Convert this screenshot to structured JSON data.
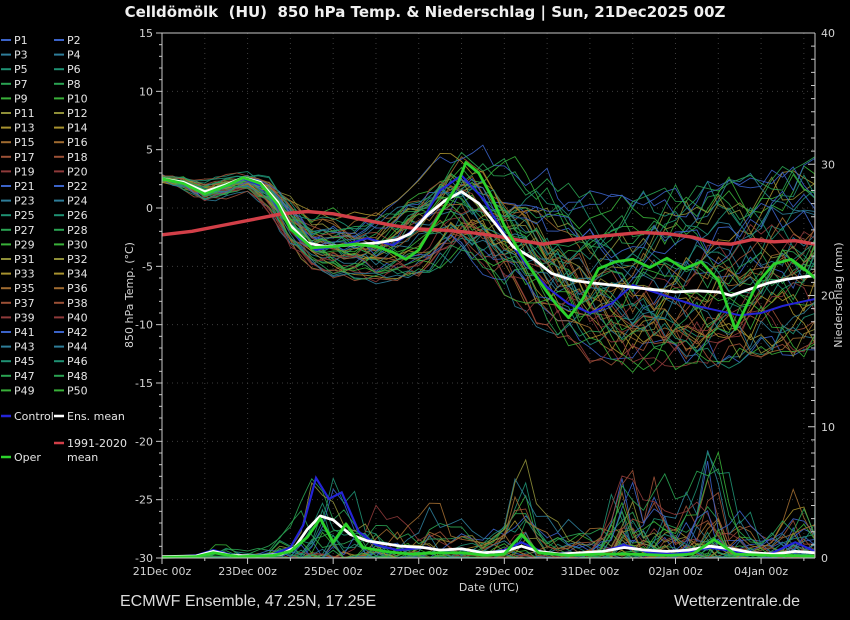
{
  "title": "Celldömölk  (HU)  850 hPa Temp. & Niederschlag | Sun, 21Dec2025 00Z",
  "footer": {
    "left": "ECMWF Ensemble, 47.25N, 17.25E",
    "right": "Wetterzentrale.de"
  },
  "colors": {
    "background": "#000000",
    "grid": "#3d3d3d",
    "axis": "#c8c8c8",
    "member_palette10": [
      "#3b63c8",
      "#2e7d99",
      "#1f9173",
      "#2aa352",
      "#39b039",
      "#8f8f38",
      "#a8922f",
      "#a06b30",
      "#9c5036",
      "#8f3a3a"
    ],
    "control": "#2424d8",
    "ens_mean": "#ffffff",
    "climate_mean": "#d23f48",
    "oper": "#2bd22b"
  },
  "legend": {
    "members": [
      "P1",
      "P2",
      "P3",
      "P4",
      "P5",
      "P6",
      "P7",
      "P8",
      "P9",
      "P10",
      "P11",
      "P12",
      "P13",
      "P14",
      "P15",
      "P16",
      "P17",
      "P18",
      "P19",
      "P20",
      "P21",
      "P22",
      "P23",
      "P24",
      "P25",
      "P26",
      "P27",
      "P28",
      "P29",
      "P30",
      "P31",
      "P32",
      "P33",
      "P34",
      "P35",
      "P36",
      "P37",
      "P38",
      "P39",
      "P40",
      "P41",
      "P42",
      "P43",
      "P44",
      "P45",
      "P46",
      "P47",
      "P48",
      "P49",
      "P50"
    ],
    "special": [
      {
        "label": "Control",
        "color": "#2424d8"
      },
      {
        "label": "Ens. mean",
        "color": "#ffffff"
      },
      {
        "label": "1991-2020 mean",
        "color": "#d23f48"
      },
      {
        "label": "Oper",
        "color": "#2bd22b"
      }
    ]
  },
  "chart_data": {
    "type": "line",
    "title": "Celldömölk  (HU)  850 hPa Temp. & Niederschlag | Sun, 21Dec2025 00Z",
    "x_axis": {
      "label": "Date (UTC)",
      "tick_labels": [
        "21Dec 00z",
        "23Dec 00z",
        "25Dec 00z",
        "27Dec 00z",
        "29Dec 00z",
        "31Dec 00z",
        "02Jan 00z",
        "04Jan 00z"
      ],
      "tick_days": [
        0,
        2,
        4,
        6,
        8,
        10,
        12,
        14
      ],
      "range_days": [
        0,
        15.26
      ]
    },
    "y_axis_left": {
      "label": "850 hPa Temp. (°C)",
      "ticks": [
        15,
        10,
        5,
        0,
        -5,
        -10,
        -15,
        -20,
        -25,
        -30
      ],
      "range": [
        -30,
        15
      ]
    },
    "y_axis_right": {
      "label": "Niederschlag (mm)",
      "ticks": [
        0,
        10,
        20,
        30,
        40
      ],
      "range": [
        0,
        40
      ]
    },
    "n_members": 50,
    "series": {
      "ens_mean_temp": {
        "name": "Ens. mean",
        "unit": "°C",
        "points": [
          [
            0,
            2.5
          ],
          [
            0.5,
            2.2
          ],
          [
            1,
            1.4
          ],
          [
            1.5,
            2.0
          ],
          [
            1.9,
            2.6
          ],
          [
            2.3,
            2.2
          ],
          [
            2.7,
            0.5
          ],
          [
            3,
            -1.5
          ],
          [
            3.4,
            -3.0
          ],
          [
            3.8,
            -3.3
          ],
          [
            4.3,
            -3.2
          ],
          [
            5,
            -3.0
          ],
          [
            5.5,
            -2.7
          ],
          [
            5.8,
            -2.2
          ],
          [
            6.2,
            -0.6
          ],
          [
            6.6,
            0.6
          ],
          [
            7.0,
            1.4
          ],
          [
            7.4,
            0.4
          ],
          [
            7.8,
            -1.4
          ],
          [
            8.2,
            -3.3
          ],
          [
            8.7,
            -4.4
          ],
          [
            9.1,
            -5.6
          ],
          [
            9.6,
            -6.2
          ],
          [
            10,
            -6.4
          ],
          [
            10.5,
            -6.6
          ],
          [
            11,
            -6.8
          ],
          [
            11.5,
            -7.0
          ],
          [
            12,
            -7.2
          ],
          [
            12.5,
            -7.1
          ],
          [
            13,
            -7.2
          ],
          [
            13.3,
            -7.5
          ],
          [
            13.7,
            -7.0
          ],
          [
            14.2,
            -6.4
          ],
          [
            14.6,
            -6.1
          ],
          [
            15,
            -5.9
          ],
          [
            15.26,
            -5.8
          ]
        ]
      },
      "climate_mean_temp": {
        "name": "1991-2020 mean",
        "unit": "°C",
        "points": [
          [
            0,
            -2.3
          ],
          [
            0.7,
            -2.0
          ],
          [
            1.4,
            -1.5
          ],
          [
            2.1,
            -1.0
          ],
          [
            2.8,
            -0.5
          ],
          [
            3.4,
            -0.3
          ],
          [
            4,
            -0.5
          ],
          [
            4.7,
            -1.0
          ],
          [
            5.4,
            -1.5
          ],
          [
            6,
            -1.8
          ],
          [
            6.6,
            -1.9
          ],
          [
            7.2,
            -2.1
          ],
          [
            7.8,
            -2.4
          ],
          [
            8.4,
            -2.8
          ],
          [
            8.9,
            -3.1
          ],
          [
            9.4,
            -2.8
          ],
          [
            10,
            -2.5
          ],
          [
            10.6,
            -2.3
          ],
          [
            11.2,
            -2.1
          ],
          [
            11.8,
            -2.2
          ],
          [
            12.4,
            -2.5
          ],
          [
            12.9,
            -3.0
          ],
          [
            13.3,
            -3.1
          ],
          [
            13.8,
            -2.7
          ],
          [
            14.3,
            -2.9
          ],
          [
            14.8,
            -2.8
          ],
          [
            15.26,
            -3.1
          ]
        ]
      },
      "oper_temp": {
        "name": "Oper",
        "unit": "°C",
        "points": [
          [
            0,
            2.5
          ],
          [
            0.5,
            2.1
          ],
          [
            1,
            1.2
          ],
          [
            1.5,
            1.9
          ],
          [
            1.9,
            2.6
          ],
          [
            2.3,
            2.1
          ],
          [
            2.7,
            0.3
          ],
          [
            3,
            -1.8
          ],
          [
            3.5,
            -3.4
          ],
          [
            4,
            -3.3
          ],
          [
            4.5,
            -3.1
          ],
          [
            5,
            -3.3
          ],
          [
            5.4,
            -3.8
          ],
          [
            5.7,
            -4.4
          ],
          [
            6,
            -3.6
          ],
          [
            6.5,
            -0.5
          ],
          [
            6.9,
            2.0
          ],
          [
            7.1,
            3.9
          ],
          [
            7.4,
            3.0
          ],
          [
            7.7,
            1.0
          ],
          [
            8.0,
            -1.5
          ],
          [
            8.4,
            -4.0
          ],
          [
            8.8,
            -6.2
          ],
          [
            9.2,
            -8.2
          ],
          [
            9.5,
            -9.4
          ],
          [
            9.8,
            -8.0
          ],
          [
            10.2,
            -5.2
          ],
          [
            10.6,
            -4.6
          ],
          [
            11,
            -4.4
          ],
          [
            11.4,
            -5.1
          ],
          [
            11.8,
            -4.3
          ],
          [
            12.2,
            -5.2
          ],
          [
            12.6,
            -4.6
          ],
          [
            13,
            -6.2
          ],
          [
            13.4,
            -10.4
          ],
          [
            13.9,
            -6.5
          ],
          [
            14.3,
            -4.8
          ],
          [
            14.7,
            -4.4
          ],
          [
            15,
            -5.2
          ],
          [
            15.26,
            -6.0
          ]
        ]
      },
      "control_temp": {
        "name": "Control",
        "unit": "°C",
        "points": [
          [
            0,
            2.5
          ],
          [
            0.5,
            2.2
          ],
          [
            1,
            1.3
          ],
          [
            1.5,
            2.0
          ],
          [
            1.9,
            2.5
          ],
          [
            2.4,
            1.8
          ],
          [
            2.8,
            -0.5
          ],
          [
            3.2,
            -2.6
          ],
          [
            3.6,
            -3.6
          ],
          [
            4.2,
            -3.2
          ],
          [
            4.8,
            -2.6
          ],
          [
            5.4,
            -3.2
          ],
          [
            6,
            -1.5
          ],
          [
            6.5,
            1.5
          ],
          [
            7,
            2.8
          ],
          [
            7.5,
            0.8
          ],
          [
            8,
            -2.2
          ],
          [
            8.5,
            -4.8
          ],
          [
            9,
            -6.8
          ],
          [
            9.5,
            -8.2
          ],
          [
            10,
            -9.0
          ],
          [
            10.5,
            -8.2
          ],
          [
            11,
            -6.6
          ],
          [
            11.5,
            -7.2
          ],
          [
            12,
            -7.8
          ],
          [
            12.5,
            -8.4
          ],
          [
            13,
            -8.8
          ],
          [
            13.5,
            -9.2
          ],
          [
            14,
            -9.0
          ],
          [
            14.5,
            -8.4
          ],
          [
            15,
            -8.0
          ],
          [
            15.26,
            -7.8
          ]
        ]
      },
      "ens_mean_precip": {
        "name": "Ens. mean",
        "unit": "mm",
        "points": [
          [
            0,
            0.1
          ],
          [
            0.8,
            0.15
          ],
          [
            1.2,
            0.5
          ],
          [
            1.6,
            0.2
          ],
          [
            2.2,
            0.15
          ],
          [
            2.8,
            0.3
          ],
          [
            3.1,
            0.8
          ],
          [
            3.4,
            2.2
          ],
          [
            3.7,
            3.2
          ],
          [
            4,
            2.9
          ],
          [
            4.4,
            1.8
          ],
          [
            4.8,
            1.3
          ],
          [
            5.2,
            1.1
          ],
          [
            5.6,
            0.9
          ],
          [
            6.1,
            0.8
          ],
          [
            6.5,
            0.6
          ],
          [
            7,
            0.7
          ],
          [
            7.5,
            0.4
          ],
          [
            8,
            0.5
          ],
          [
            8.4,
            0.9
          ],
          [
            8.8,
            0.5
          ],
          [
            9.3,
            0.3
          ],
          [
            9.8,
            0.4
          ],
          [
            10.3,
            0.5
          ],
          [
            10.8,
            0.8
          ],
          [
            11.3,
            0.6
          ],
          [
            11.8,
            0.5
          ],
          [
            12.3,
            0.6
          ],
          [
            12.8,
            0.9
          ],
          [
            13.3,
            0.7
          ],
          [
            13.8,
            0.4
          ],
          [
            14.3,
            0.3
          ],
          [
            14.8,
            0.5
          ],
          [
            15.26,
            0.4
          ]
        ]
      },
      "oper_precip": {
        "name": "Oper",
        "unit": "mm",
        "points": [
          [
            0,
            0.05
          ],
          [
            0.8,
            0.1
          ],
          [
            1.2,
            0.4
          ],
          [
            1.8,
            0.1
          ],
          [
            2.6,
            0.2
          ],
          [
            3,
            0.5
          ],
          [
            3.4,
            1.6
          ],
          [
            3.7,
            3.0
          ],
          [
            4,
            1.2
          ],
          [
            4.3,
            2.6
          ],
          [
            4.7,
            0.8
          ],
          [
            5.2,
            0.5
          ],
          [
            5.8,
            0.3
          ],
          [
            6.4,
            0.4
          ],
          [
            7,
            0.4
          ],
          [
            7.6,
            0.2
          ],
          [
            8,
            0.3
          ],
          [
            8.4,
            1.8
          ],
          [
            8.8,
            0.4
          ],
          [
            9.5,
            0.2
          ],
          [
            10.2,
            0.3
          ],
          [
            11,
            0.3
          ],
          [
            11.8,
            0.2
          ],
          [
            12.4,
            0.3
          ],
          [
            12.9,
            1.4
          ],
          [
            13.4,
            0.3
          ],
          [
            14.2,
            0.2
          ],
          [
            15.26,
            0.15
          ]
        ]
      },
      "control_precip": {
        "name": "Control",
        "unit": "mm",
        "points": [
          [
            0,
            0.05
          ],
          [
            0.8,
            0.2
          ],
          [
            1.2,
            0.6
          ],
          [
            1.8,
            0.1
          ],
          [
            2.6,
            0.3
          ],
          [
            3,
            0.8
          ],
          [
            3.3,
            2.5
          ],
          [
            3.6,
            6.1
          ],
          [
            3.9,
            4.5
          ],
          [
            4.2,
            5.0
          ],
          [
            4.6,
            2.0
          ],
          [
            5,
            1.0
          ],
          [
            5.5,
            0.6
          ],
          [
            6.2,
            0.8
          ],
          [
            6.8,
            0.4
          ],
          [
            7.4,
            0.3
          ],
          [
            8,
            0.6
          ],
          [
            8.4,
            1.2
          ],
          [
            9,
            0.3
          ],
          [
            9.6,
            0.2
          ],
          [
            10.2,
            0.4
          ],
          [
            10.8,
            1.0
          ],
          [
            11.4,
            0.4
          ],
          [
            12,
            0.3
          ],
          [
            12.8,
            0.8
          ],
          [
            13.6,
            0.4
          ],
          [
            14.2,
            0.3
          ],
          [
            14.8,
            1.2
          ],
          [
            15.26,
            0.5
          ]
        ]
      }
    },
    "ensemble_envelope_temp": [
      [
        0,
        2.2,
        2.9
      ],
      [
        0.5,
        1.4,
        3.0
      ],
      [
        1,
        0.3,
        2.6
      ],
      [
        1.5,
        0.7,
        3.1
      ],
      [
        2,
        1.4,
        3.4
      ],
      [
        2.5,
        -0.5,
        3.3
      ],
      [
        3,
        -3.5,
        1.5
      ],
      [
        3.5,
        -5.5,
        -0.3
      ],
      [
        4,
        -6.0,
        0.0
      ],
      [
        4.5,
        -6.2,
        -0.2
      ],
      [
        5,
        -6.5,
        0.5
      ],
      [
        5.5,
        -6.3,
        1.0
      ],
      [
        6,
        -6.0,
        2.8
      ],
      [
        6.5,
        -5.2,
        5.0
      ],
      [
        7,
        -5.0,
        6.2
      ],
      [
        7.5,
        -6.0,
        5.6
      ],
      [
        8,
        -8.0,
        5.0
      ],
      [
        8.5,
        -9.5,
        4.2
      ],
      [
        9,
        -11.0,
        3.5
      ],
      [
        9.5,
        -12.0,
        2.5
      ],
      [
        10,
        -13.5,
        2.0
      ],
      [
        10.5,
        -14.0,
        1.5
      ],
      [
        11,
        -14.2,
        1.5
      ],
      [
        11.5,
        -14.5,
        1.8
      ],
      [
        12,
        -14.5,
        2.2
      ],
      [
        12.5,
        -14.2,
        2.6
      ],
      [
        13,
        -14.0,
        3.0
      ],
      [
        13.5,
        -13.8,
        3.2
      ],
      [
        14,
        -13.5,
        3.5
      ],
      [
        14.5,
        -13.2,
        4.2
      ],
      [
        15,
        -13.0,
        4.8
      ],
      [
        15.26,
        -12.8,
        5.2
      ]
    ],
    "ensemble_precip_max": [
      [
        0,
        0.5
      ],
      [
        0.5,
        0.4
      ],
      [
        1,
        0.8
      ],
      [
        1.3,
        1.8
      ],
      [
        2,
        0.8
      ],
      [
        2.5,
        1.2
      ],
      [
        3,
        3
      ],
      [
        3.3,
        6
      ],
      [
        3.6,
        8.5
      ],
      [
        4,
        9.4
      ],
      [
        4.3,
        7
      ],
      [
        4.6,
        5
      ],
      [
        5,
        5.5
      ],
      [
        5.4,
        4
      ],
      [
        6,
        3
      ],
      [
        6.3,
        5.5
      ],
      [
        6.6,
        3
      ],
      [
        7,
        3
      ],
      [
        7.5,
        2
      ],
      [
        8,
        4
      ],
      [
        8.4,
        7.6
      ],
      [
        8.8,
        3
      ],
      [
        9.3,
        2.5
      ],
      [
        9.8,
        3
      ],
      [
        10.3,
        4
      ],
      [
        10.8,
        11
      ],
      [
        11.2,
        5
      ],
      [
        11.6,
        8
      ],
      [
        12,
        4.5
      ],
      [
        12.4,
        5
      ],
      [
        12.8,
        11.5
      ],
      [
        13.2,
        6
      ],
      [
        13.6,
        4.5
      ],
      [
        14,
        2.5
      ],
      [
        14.4,
        3
      ],
      [
        14.8,
        6.3
      ],
      [
        15.26,
        4.5
      ]
    ]
  }
}
